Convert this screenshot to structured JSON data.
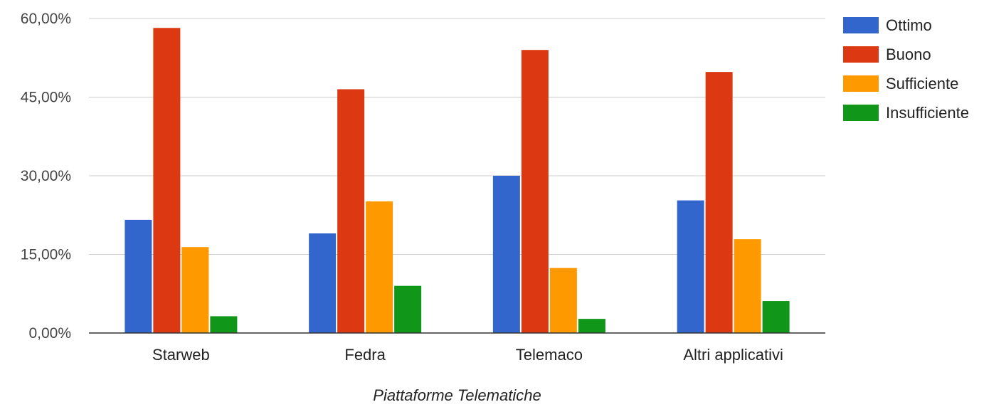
{
  "chart_data": {
    "type": "bar",
    "categories": [
      "Starweb",
      "Fedra",
      "Telemaco",
      "Altri applicativi"
    ],
    "series": [
      {
        "name": "Ottimo",
        "color": "#3366cc",
        "values": [
          21.6,
          19.0,
          30.0,
          25.3
        ]
      },
      {
        "name": "Buono",
        "color": "#dc3912",
        "values": [
          58.2,
          46.5,
          54.0,
          49.8
        ]
      },
      {
        "name": "Sufficiente",
        "color": "#ff9900",
        "values": [
          16.4,
          25.1,
          12.4,
          17.9
        ]
      },
      {
        "name": "Insufficiente",
        "color": "#109618",
        "values": [
          3.2,
          9.0,
          2.7,
          6.1
        ]
      }
    ],
    "yticks": [
      "0,00%",
      "15,00%",
      "30,00%",
      "45,00%",
      "60,00%"
    ],
    "ytick_values": [
      0,
      15,
      30,
      45,
      60
    ],
    "ylim": [
      0,
      60
    ],
    "xlabel": "Piattaforme Telematiche",
    "ylabel": "",
    "title": "",
    "grid": true,
    "legend_position": "right"
  }
}
